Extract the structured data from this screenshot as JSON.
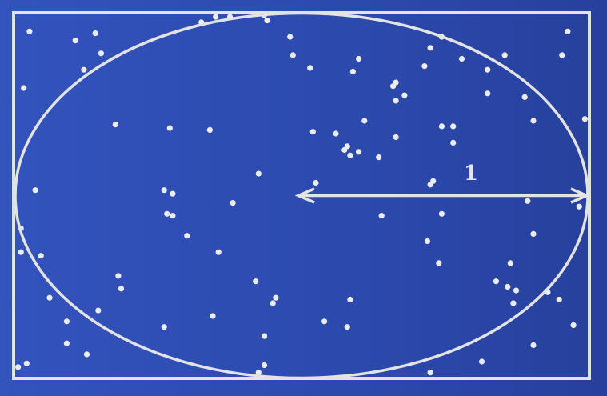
{
  "radius_label": "1",
  "colors": {
    "background_left": "#3353bd",
    "background_right": "#27409d",
    "stroke": "#e3e3e3",
    "dot": "#ececec"
  },
  "random_points": {
    "x_range": [
      -1,
      1
    ],
    "y_range": [
      -1,
      1
    ],
    "points": [
      [
        -0.95,
        0.9
      ],
      [
        -0.79,
        0.85
      ],
      [
        -0.72,
        0.89
      ],
      [
        -0.7,
        0.78
      ],
      [
        -0.76,
        0.69
      ],
      [
        -0.97,
        0.59
      ],
      [
        -0.35,
        0.95
      ],
      [
        -0.3,
        0.98
      ],
      [
        -0.25,
        0.98
      ],
      [
        -0.13,
        0.99
      ],
      [
        -0.12,
        0.96
      ],
      [
        -0.04,
        0.87
      ],
      [
        -0.03,
        0.77
      ],
      [
        0.03,
        0.7
      ],
      [
        0.2,
        0.75
      ],
      [
        0.18,
        0.68
      ],
      [
        0.33,
        0.62
      ],
      [
        0.32,
        0.6
      ],
      [
        0.33,
        0.52
      ],
      [
        0.36,
        0.55
      ],
      [
        0.45,
        0.81
      ],
      [
        0.43,
        0.71
      ],
      [
        0.49,
        0.87
      ],
      [
        0.56,
        0.75
      ],
      [
        0.71,
        0.77
      ],
      [
        0.65,
        0.69
      ],
      [
        0.65,
        0.56
      ],
      [
        0.78,
        0.54
      ],
      [
        0.81,
        0.41
      ],
      [
        0.91,
        0.77
      ],
      [
        0.93,
        0.9
      ],
      [
        0.99,
        0.42
      ],
      [
        -0.65,
        0.39
      ],
      [
        -0.46,
        0.37
      ],
      [
        -0.32,
        0.36
      ],
      [
        0.04,
        0.35
      ],
      [
        0.22,
        0.41
      ],
      [
        0.12,
        0.34
      ],
      [
        0.16,
        0.27
      ],
      [
        0.15,
        0.25
      ],
      [
        0.17,
        0.22
      ],
      [
        0.2,
        0.24
      ],
      [
        0.27,
        0.21
      ],
      [
        0.33,
        0.32
      ],
      [
        0.49,
        0.38
      ],
      [
        0.53,
        0.38
      ],
      [
        0.53,
        0.29
      ],
      [
        -0.15,
        0.12
      ],
      [
        0.05,
        0.07
      ],
      [
        0.46,
        0.08
      ],
      [
        0.45,
        0.06
      ],
      [
        0.79,
        -0.03
      ],
      [
        -0.93,
        0.03
      ],
      [
        -0.48,
        0.03
      ],
      [
        -0.45,
        0.01
      ],
      [
        -0.24,
        -0.04
      ],
      [
        -0.47,
        -0.1
      ],
      [
        -0.45,
        -0.11
      ],
      [
        -0.4,
        -0.22
      ],
      [
        -0.29,
        -0.31
      ],
      [
        -0.98,
        -0.18
      ],
      [
        -0.98,
        -0.31
      ],
      [
        -0.91,
        -0.33
      ],
      [
        0.28,
        -0.11
      ],
      [
        0.49,
        -0.1
      ],
      [
        0.44,
        -0.25
      ],
      [
        0.81,
        -0.21
      ],
      [
        0.97,
        -0.06
      ],
      [
        0.73,
        -0.37
      ],
      [
        0.48,
        -0.37
      ],
      [
        -0.64,
        -0.44
      ],
      [
        -0.63,
        -0.51
      ],
      [
        -0.16,
        -0.47
      ],
      [
        -0.09,
        -0.56
      ],
      [
        -0.1,
        -0.59
      ],
      [
        -0.88,
        -0.56
      ],
      [
        -0.71,
        -0.63
      ],
      [
        -0.82,
        -0.69
      ],
      [
        -0.48,
        -0.72
      ],
      [
        -0.31,
        -0.66
      ],
      [
        0.17,
        -0.57
      ],
      [
        0.16,
        -0.72
      ],
      [
        0.68,
        -0.47
      ],
      [
        0.72,
        -0.5
      ],
      [
        0.75,
        -0.52
      ],
      [
        0.74,
        -0.59
      ],
      [
        0.86,
        -0.53
      ],
      [
        0.9,
        -0.57
      ],
      [
        0.95,
        -0.71
      ],
      [
        0.81,
        -0.82
      ],
      [
        0.08,
        -0.69
      ],
      [
        -0.13,
        -0.77
      ],
      [
        -0.82,
        -0.81
      ],
      [
        -0.75,
        -0.87
      ],
      [
        -0.96,
        -0.92
      ],
      [
        -0.99,
        -0.94
      ],
      [
        -0.13,
        -0.93
      ],
      [
        -0.15,
        -0.97
      ],
      [
        0.45,
        -0.97
      ],
      [
        0.63,
        -0.91
      ]
    ]
  }
}
